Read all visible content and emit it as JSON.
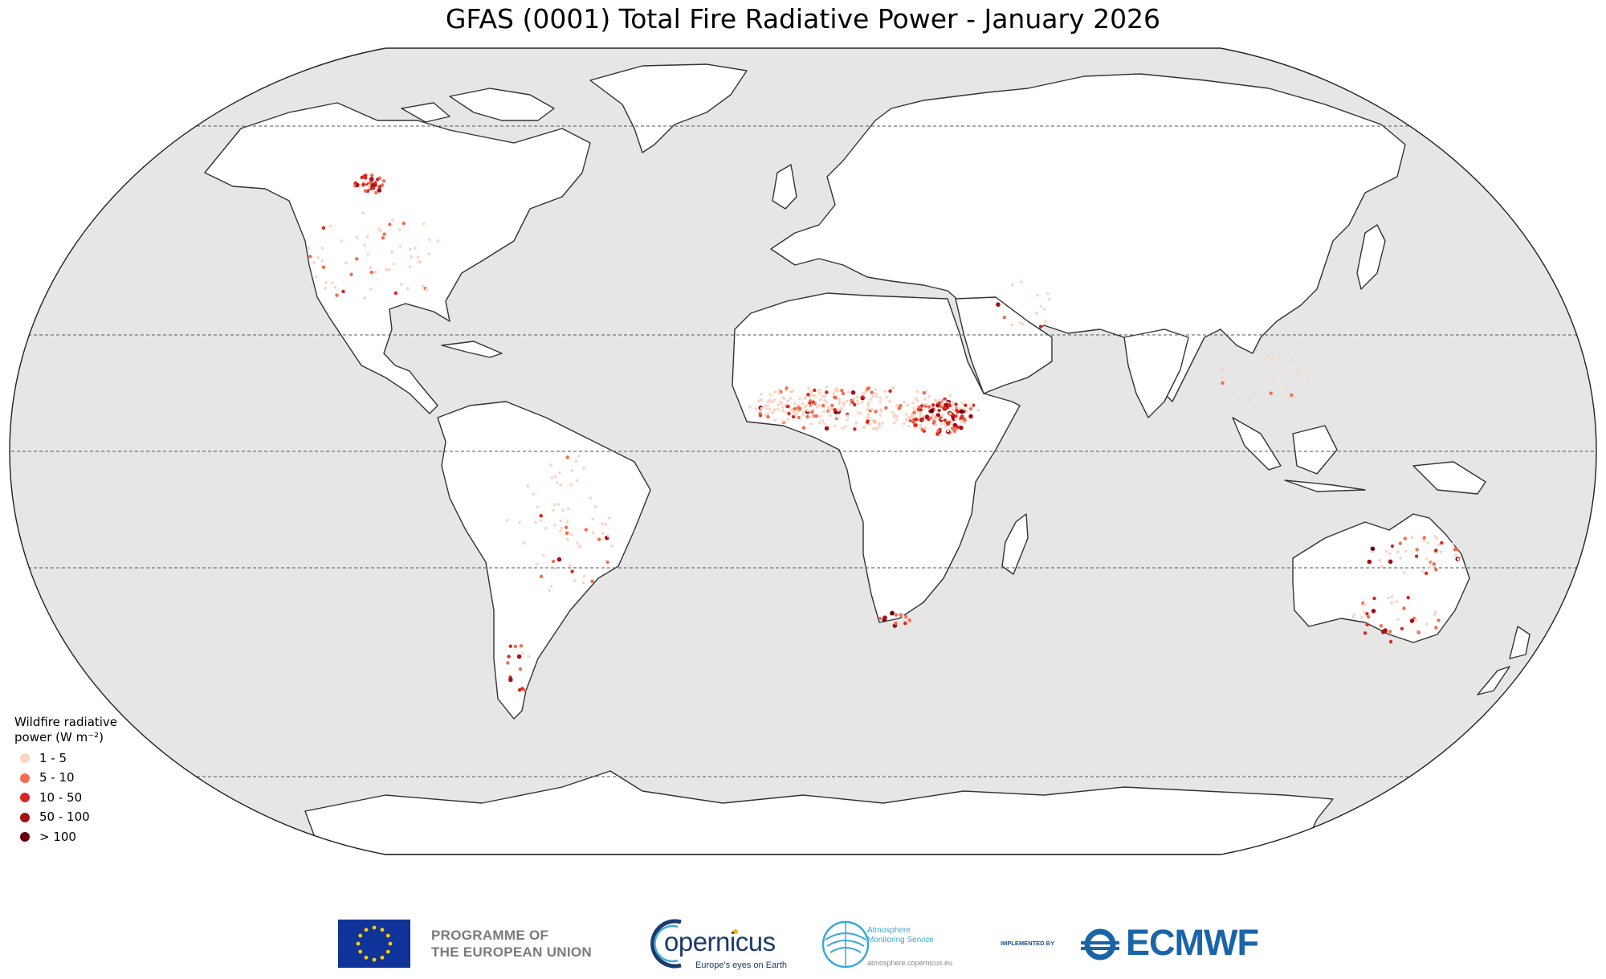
{
  "title": "GFAS (0001) Total Fire Radiative Power - January 2026",
  "map": {
    "projection": "Robinson",
    "ocean_color": "#e6e6e6",
    "land_color": "#ffffff",
    "coastline_color": "#333333",
    "gridlines": "dashed latitude lines at 60N, 30N, 0, 30S, 60S"
  },
  "legend": {
    "title_line1": "Wildfire radiative",
    "title_line2": "power (W m⁻²)",
    "items": [
      {
        "label": "1 - 5",
        "color": "#fbd3c1"
      },
      {
        "label": "5 - 10",
        "color": "#f26d4f"
      },
      {
        "label": "10 - 50",
        "color": "#d9261f"
      },
      {
        "label": "50 - 100",
        "color": "#a50f15"
      },
      {
        "label": "> 100",
        "color": "#67000d"
      }
    ]
  },
  "footer": {
    "eu_line1": "PROGRAMME OF",
    "eu_line2": "THE EUROPEAN UNION",
    "copernicus_word": "opernicus",
    "copernicus_tagline": "Europe's eyes on Earth",
    "cams_line1": "Atmosphere",
    "cams_line2": "Monitoring Service",
    "cams_url": "atmosphere.copernicus.eu",
    "implemented_by": "IMPLEMENTED BY",
    "ecmwf": "ECMWF"
  }
}
